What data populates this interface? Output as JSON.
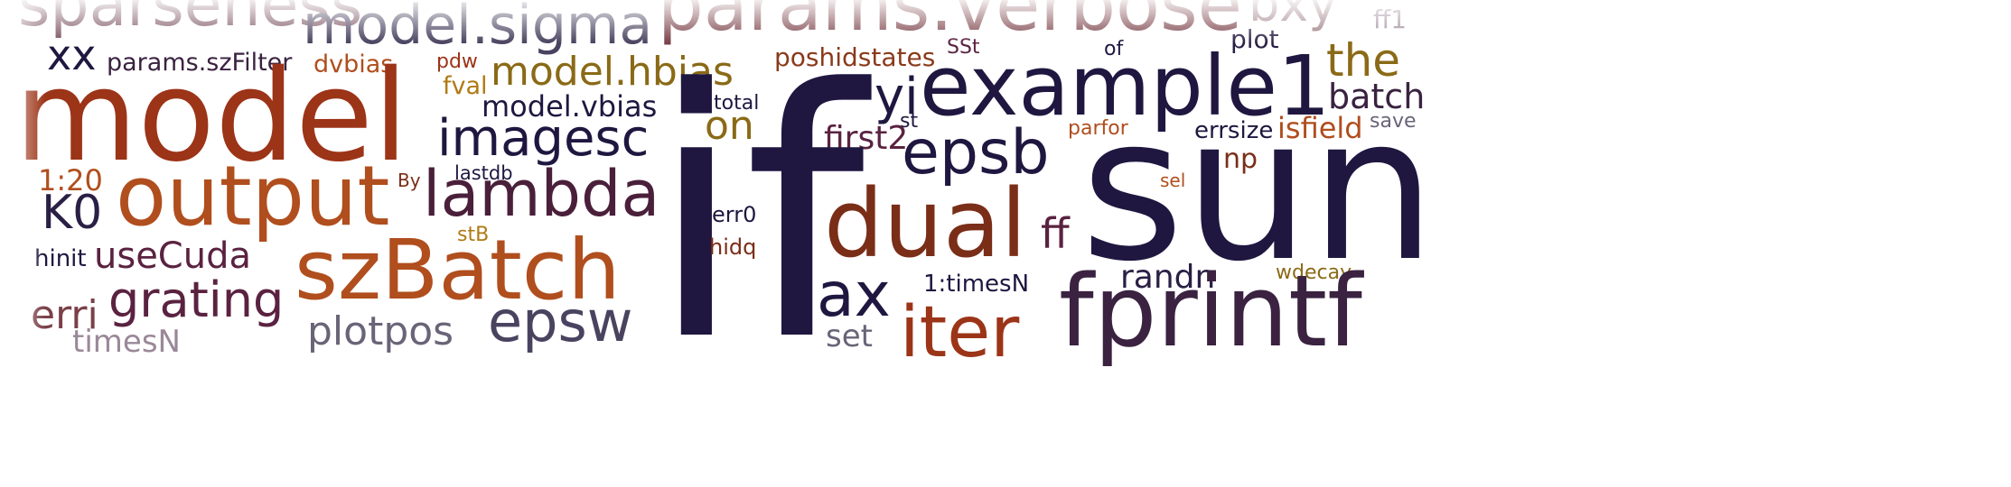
{
  "palette": {
    "dark_navy": "#1f1740",
    "plum": "#5a2240",
    "rust": "#9c3418",
    "copper": "#b04e1e",
    "bronze": "#8f5c14",
    "olive_gold": "#8a6a16",
    "slate": "#4a4360"
  },
  "words": [
    "sparseness",
    "model.sigma",
    "params.verbose",
    "bxy",
    "ff1",
    "xx",
    "params.szFilter",
    "dvbias",
    "pdw",
    "model.hbias",
    "poshidstates",
    "SSt",
    "of",
    "plot",
    "the",
    "fval",
    "model.vbias",
    "total",
    "example1",
    "yi",
    "batch",
    "model",
    "imagesc",
    "on",
    "st",
    "save",
    "parfor",
    "errsize",
    "isfield",
    "first2",
    "if",
    "epsb",
    "np",
    "1:20",
    "By",
    "lastdb",
    "output",
    "sel",
    "K0",
    "lambda",
    "sun",
    "err0",
    "dual",
    "ff",
    "hinit",
    "useCuda",
    "stB",
    "hidq",
    "szBatch",
    "randn",
    "wdecay",
    "grating",
    "ax",
    "1:timesN",
    "erri",
    "fprintf",
    "plotpos",
    "epsw",
    "iter",
    "set",
    "timesN"
  ]
}
